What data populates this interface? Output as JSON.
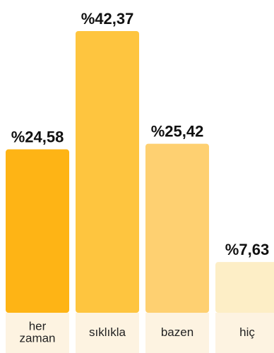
{
  "chart_data": {
    "type": "bar",
    "categories": [
      [
        "her",
        "zaman"
      ],
      [
        "sıklıkla"
      ],
      [
        "bazen"
      ],
      [
        "hiç"
      ]
    ],
    "values": [
      24.58,
      42.37,
      25.42,
      7.63
    ],
    "value_labels": [
      "%24,58",
      "%42,37",
      "%25,42",
      "%7,63"
    ],
    "ylim": [
      0,
      42.37
    ],
    "grid": false,
    "legend": "none",
    "colors": {
      "bars": [
        "#FEB415",
        "#FEC53F",
        "#FED071",
        "#FDEEC6"
      ],
      "category_band": "#FDF3E1"
    }
  }
}
